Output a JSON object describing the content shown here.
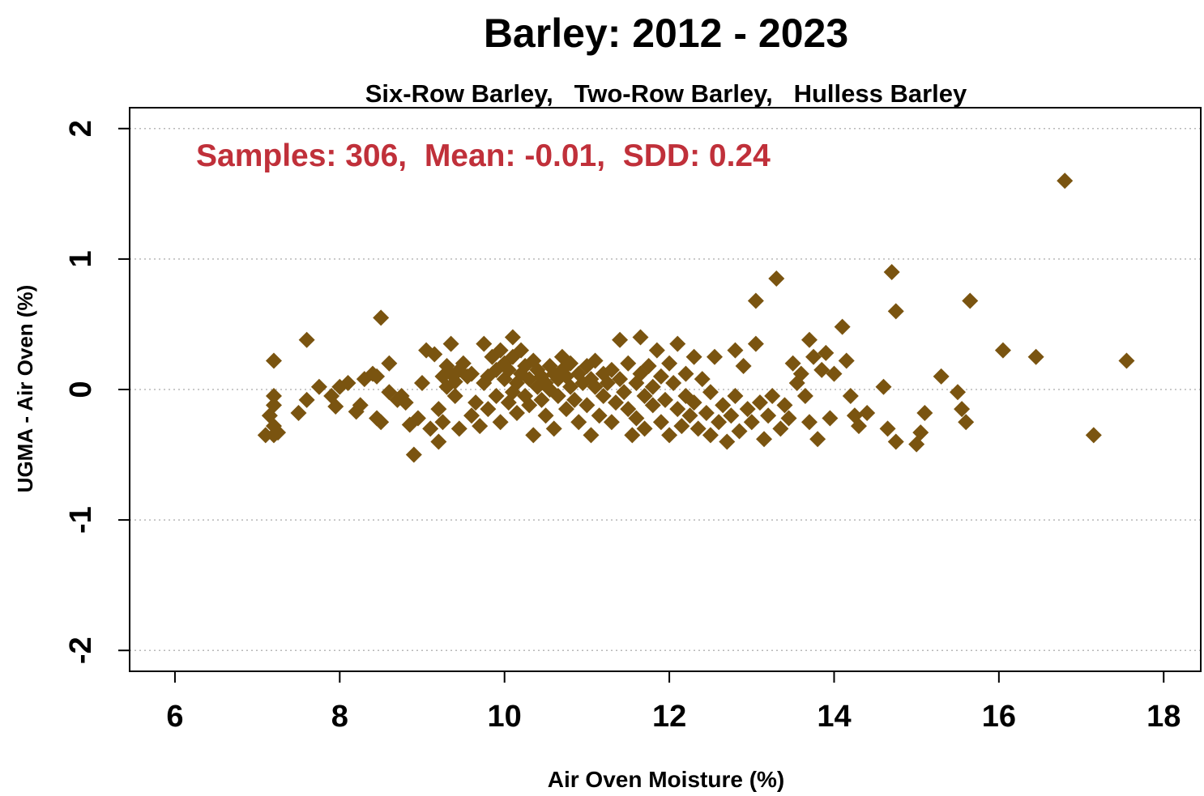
{
  "chart_data": {
    "type": "scatter",
    "title": "Barley: 2012 - 2023",
    "subtitle": "Six-Row Barley,   Two-Row Barley,   Hulless Barley",
    "annotation": "Samples: 306,  Mean: -0.01,  SDD: 0.24",
    "xlabel": "Air Oven Moisture (%)",
    "ylabel": "UGMA - Air Oven (%)",
    "xlim": [
      5.45,
      18.45
    ],
    "ylim": [
      -2.16,
      2.16
    ],
    "xticks": [
      6,
      8,
      10,
      12,
      14,
      16,
      18
    ],
    "yticks": [
      -2,
      -1,
      0,
      1,
      2
    ],
    "grid": "horizontal-dotted",
    "marker": "diamond",
    "marker_color": "#7a5410",
    "annotation_color": "#c0303a",
    "points": [
      [
        7.1,
        -0.35
      ],
      [
        7.2,
        -0.35
      ],
      [
        7.25,
        -0.33
      ],
      [
        7.2,
        -0.28
      ],
      [
        7.15,
        -0.2
      ],
      [
        7.2,
        -0.12
      ],
      [
        7.2,
        -0.05
      ],
      [
        7.2,
        0.22
      ],
      [
        7.5,
        -0.18
      ],
      [
        7.6,
        -0.08
      ],
      [
        7.6,
        0.38
      ],
      [
        7.75,
        0.02
      ],
      [
        7.9,
        -0.05
      ],
      [
        7.95,
        -0.13
      ],
      [
        8.0,
        0.02
      ],
      [
        8.1,
        0.05
      ],
      [
        8.2,
        -0.17
      ],
      [
        8.25,
        -0.12
      ],
      [
        8.3,
        0.08
      ],
      [
        8.4,
        0.12
      ],
      [
        8.45,
        0.1
      ],
      [
        8.45,
        -0.22
      ],
      [
        8.5,
        -0.25
      ],
      [
        8.5,
        0.55
      ],
      [
        8.6,
        0.2
      ],
      [
        8.6,
        -0.02
      ],
      [
        8.7,
        -0.08
      ],
      [
        8.75,
        -0.05
      ],
      [
        8.8,
        -0.1
      ],
      [
        8.85,
        -0.27
      ],
      [
        8.9,
        -0.5
      ],
      [
        8.95,
        -0.22
      ],
      [
        9.0,
        0.05
      ],
      [
        9.05,
        0.3
      ],
      [
        9.1,
        -0.3
      ],
      [
        9.15,
        0.27
      ],
      [
        9.2,
        -0.4
      ],
      [
        9.2,
        -0.15
      ],
      [
        9.25,
        0.1
      ],
      [
        9.25,
        -0.25
      ],
      [
        9.3,
        0.18
      ],
      [
        9.3,
        0.02
      ],
      [
        9.35,
        0.35
      ],
      [
        9.35,
        0.12
      ],
      [
        9.4,
        0.06
      ],
      [
        9.4,
        -0.05
      ],
      [
        9.45,
        0.15
      ],
      [
        9.45,
        -0.3
      ],
      [
        9.5,
        0.2
      ],
      [
        9.55,
        0.1
      ],
      [
        9.6,
        0.12
      ],
      [
        9.6,
        -0.2
      ],
      [
        9.65,
        -0.1
      ],
      [
        9.7,
        -0.28
      ],
      [
        9.75,
        0.05
      ],
      [
        9.75,
        0.35
      ],
      [
        9.8,
        0.1
      ],
      [
        9.8,
        -0.15
      ],
      [
        9.85,
        0.25
      ],
      [
        9.9,
        0.15
      ],
      [
        9.9,
        -0.05
      ],
      [
        9.95,
        0.3
      ],
      [
        9.95,
        -0.25
      ],
      [
        10.0,
        0.08
      ],
      [
        10.0,
        0.2
      ],
      [
        10.05,
        -0.1
      ],
      [
        10.05,
        0.15
      ],
      [
        10.1,
        0.4
      ],
      [
        10.1,
        0.25
      ],
      [
        10.1,
        -0.02
      ],
      [
        10.15,
        0.05
      ],
      [
        10.15,
        -0.18
      ],
      [
        10.2,
        0.12
      ],
      [
        10.2,
        0.3
      ],
      [
        10.25,
        -0.05
      ],
      [
        10.25,
        0.18
      ],
      [
        10.3,
        0.08
      ],
      [
        10.3,
        -0.12
      ],
      [
        10.35,
        0.22
      ],
      [
        10.35,
        -0.35
      ],
      [
        10.4,
        0.02
      ],
      [
        10.4,
        0.15
      ],
      [
        10.45,
        0.1
      ],
      [
        10.45,
        -0.08
      ],
      [
        10.5,
        0.05
      ],
      [
        10.5,
        -0.2
      ],
      [
        10.55,
        0.18
      ],
      [
        10.55,
        0.0
      ],
      [
        10.6,
        0.12
      ],
      [
        10.6,
        -0.3
      ],
      [
        10.65,
        0.08
      ],
      [
        10.65,
        -0.05
      ],
      [
        10.7,
        0.15
      ],
      [
        10.7,
        0.25
      ],
      [
        10.75,
        0.1
      ],
      [
        10.75,
        -0.15
      ],
      [
        10.8,
        0.02
      ],
      [
        10.8,
        0.2
      ],
      [
        10.85,
        -0.08
      ],
      [
        10.9,
        0.12
      ],
      [
        10.9,
        -0.25
      ],
      [
        10.95,
        0.05
      ],
      [
        11.0,
        0.18
      ],
      [
        11.0,
        -0.12
      ],
      [
        11.05,
        0.08
      ],
      [
        11.05,
        -0.35
      ],
      [
        11.1,
        0.02
      ],
      [
        11.1,
        0.22
      ],
      [
        11.15,
        -0.2
      ],
      [
        11.2,
        0.12
      ],
      [
        11.2,
        -0.05
      ],
      [
        11.25,
        0.05
      ],
      [
        11.3,
        -0.25
      ],
      [
        11.3,
        0.15
      ],
      [
        11.35,
        -0.1
      ],
      [
        11.4,
        0.08
      ],
      [
        11.4,
        0.38
      ],
      [
        11.45,
        -0.02
      ],
      [
        11.5,
        -0.15
      ],
      [
        11.5,
        0.2
      ],
      [
        11.55,
        -0.35
      ],
      [
        11.6,
        0.05
      ],
      [
        11.6,
        -0.22
      ],
      [
        11.65,
        0.4
      ],
      [
        11.65,
        0.12
      ],
      [
        11.7,
        -0.05
      ],
      [
        11.7,
        -0.3
      ],
      [
        11.75,
        0.18
      ],
      [
        11.8,
        -0.12
      ],
      [
        11.8,
        0.02
      ],
      [
        11.85,
        0.3
      ],
      [
        11.9,
        -0.25
      ],
      [
        11.9,
        0.1
      ],
      [
        11.95,
        -0.08
      ],
      [
        12.0,
        0.2
      ],
      [
        12.0,
        -0.35
      ],
      [
        12.05,
        0.05
      ],
      [
        12.1,
        -0.15
      ],
      [
        12.1,
        0.35
      ],
      [
        12.15,
        -0.28
      ],
      [
        12.2,
        0.12
      ],
      [
        12.2,
        -0.05
      ],
      [
        12.25,
        -0.2
      ],
      [
        12.3,
        0.25
      ],
      [
        12.3,
        -0.1
      ],
      [
        12.35,
        -0.3
      ],
      [
        12.4,
        0.08
      ],
      [
        12.45,
        -0.18
      ],
      [
        12.5,
        -0.35
      ],
      [
        12.5,
        -0.02
      ],
      [
        12.55,
        0.25
      ],
      [
        12.6,
        -0.25
      ],
      [
        12.65,
        -0.12
      ],
      [
        12.7,
        -0.4
      ],
      [
        12.75,
        -0.2
      ],
      [
        12.8,
        -0.05
      ],
      [
        12.8,
        0.3
      ],
      [
        12.85,
        -0.32
      ],
      [
        12.9,
        0.18
      ],
      [
        12.95,
        -0.15
      ],
      [
        13.0,
        -0.25
      ],
      [
        13.05,
        0.35
      ],
      [
        13.05,
        0.68
      ],
      [
        13.1,
        -0.1
      ],
      [
        13.15,
        -0.38
      ],
      [
        13.2,
        -0.2
      ],
      [
        13.25,
        -0.05
      ],
      [
        13.3,
        0.85
      ],
      [
        13.35,
        -0.3
      ],
      [
        13.4,
        -0.12
      ],
      [
        13.45,
        -0.22
      ],
      [
        13.5,
        0.2
      ],
      [
        13.55,
        0.05
      ],
      [
        13.6,
        0.12
      ],
      [
        13.65,
        -0.05
      ],
      [
        13.7,
        -0.25
      ],
      [
        13.7,
        0.38
      ],
      [
        13.75,
        0.25
      ],
      [
        13.8,
        -0.38
      ],
      [
        13.85,
        0.15
      ],
      [
        13.9,
        0.28
      ],
      [
        13.95,
        -0.22
      ],
      [
        14.0,
        0.12
      ],
      [
        14.1,
        0.48
      ],
      [
        14.15,
        0.22
      ],
      [
        14.2,
        -0.05
      ],
      [
        14.25,
        -0.2
      ],
      [
        14.3,
        -0.28
      ],
      [
        14.4,
        -0.18
      ],
      [
        14.6,
        0.02
      ],
      [
        14.65,
        -0.3
      ],
      [
        14.7,
        0.9
      ],
      [
        14.75,
        -0.4
      ],
      [
        14.75,
        0.6
      ],
      [
        15.0,
        -0.42
      ],
      [
        15.05,
        -0.33
      ],
      [
        15.1,
        -0.18
      ],
      [
        15.3,
        0.1
      ],
      [
        15.5,
        -0.02
      ],
      [
        15.55,
        -0.15
      ],
      [
        15.6,
        -0.25
      ],
      [
        15.65,
        0.68
      ],
      [
        16.05,
        0.3
      ],
      [
        16.45,
        0.25
      ],
      [
        16.8,
        1.6
      ],
      [
        17.15,
        -0.35
      ],
      [
        17.55,
        0.22
      ]
    ]
  }
}
